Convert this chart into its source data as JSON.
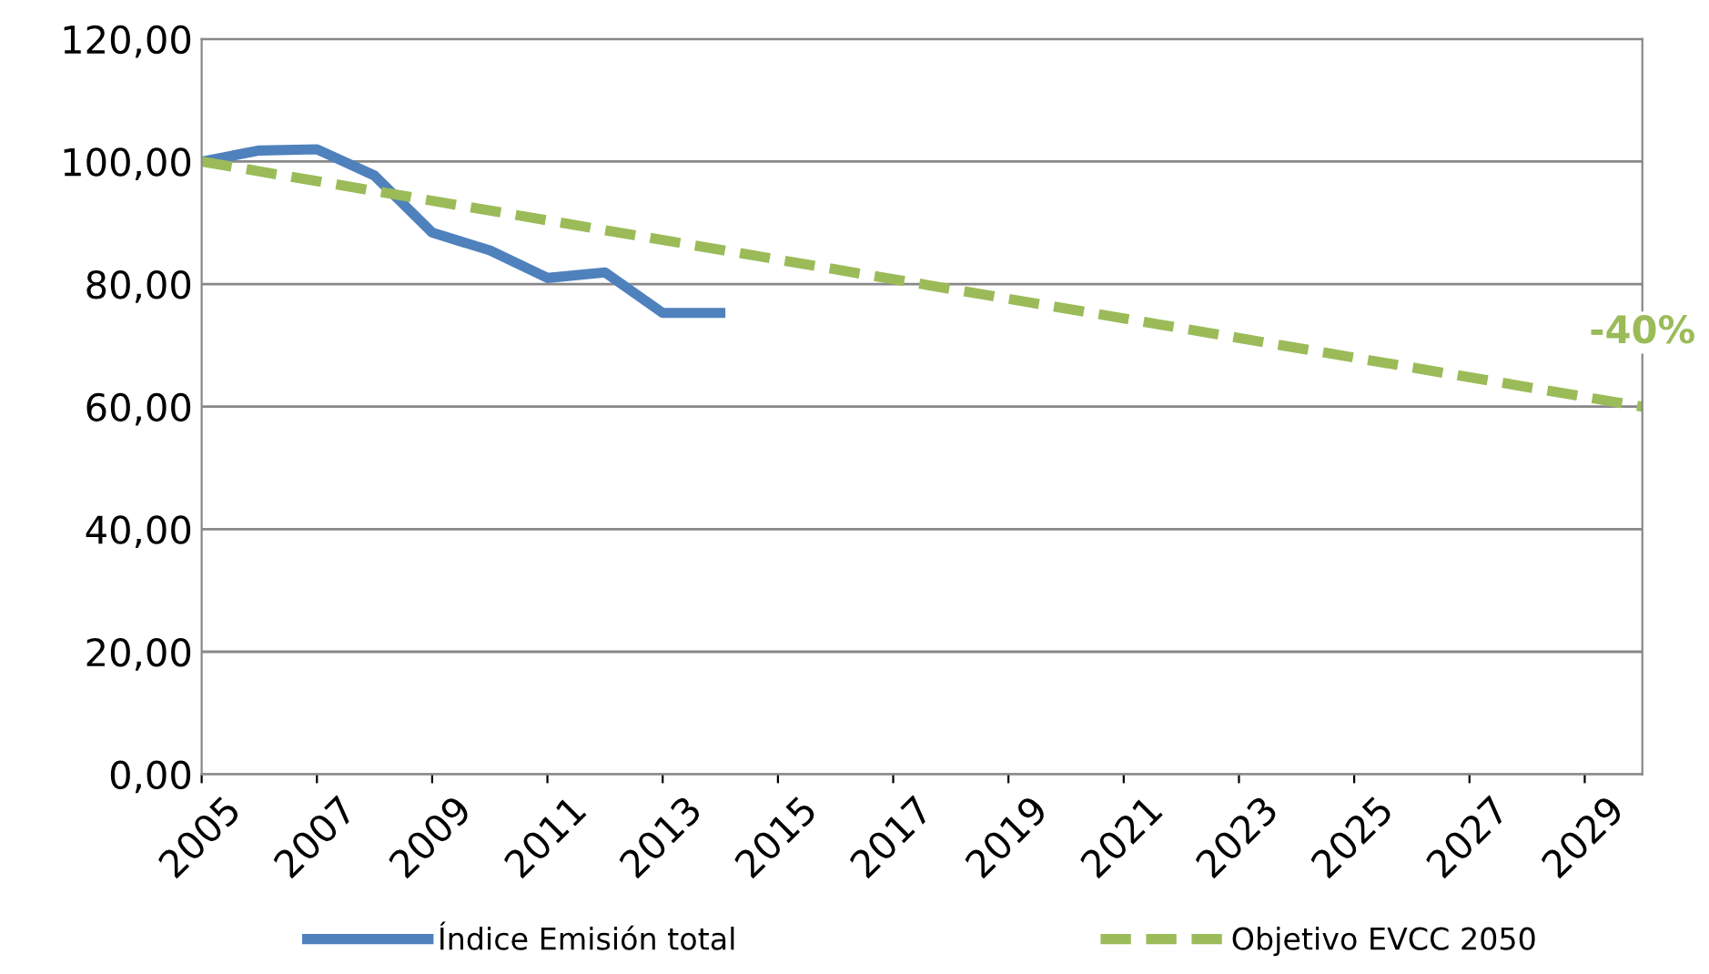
{
  "chart_data": {
    "type": "line",
    "xlim": [
      2005,
      2030
    ],
    "xticks": [
      2005,
      2007,
      2009,
      2011,
      2013,
      2015,
      2017,
      2019,
      2021,
      2023,
      2025,
      2027,
      2029
    ],
    "ylim": [
      0,
      120
    ],
    "yticks": [
      {
        "value": 0,
        "label": "0,00"
      },
      {
        "value": 20,
        "label": "20,00"
      },
      {
        "value": 40,
        "label": "40,00"
      },
      {
        "value": 60,
        "label": "60,00"
      },
      {
        "value": 80,
        "label": "80,00"
      },
      {
        "value": 100,
        "label": "100,00"
      },
      {
        "value": 120,
        "label": "120,00"
      }
    ],
    "grid": "y",
    "legend": "bottom",
    "series": [
      {
        "name": "Índice Emisión total",
        "color": "#4f81bd",
        "line_style": "solid",
        "x": [
          2005,
          2006,
          2007,
          2008,
          2009,
          2010,
          2011,
          2012,
          2013,
          2014
        ],
        "values": [
          100,
          101.8,
          102,
          97.7,
          88.4,
          85.5,
          81,
          81.9,
          75.3,
          75.3
        ]
      },
      {
        "name": "Objetivo EVCC 2050",
        "color": "#9bbb59",
        "line_style": "dashed",
        "x": [
          2005,
          2030
        ],
        "values": [
          100,
          60
        ]
      }
    ],
    "annotations": [
      {
        "text": "-40%",
        "x": 2030,
        "y": 60
      }
    ]
  }
}
